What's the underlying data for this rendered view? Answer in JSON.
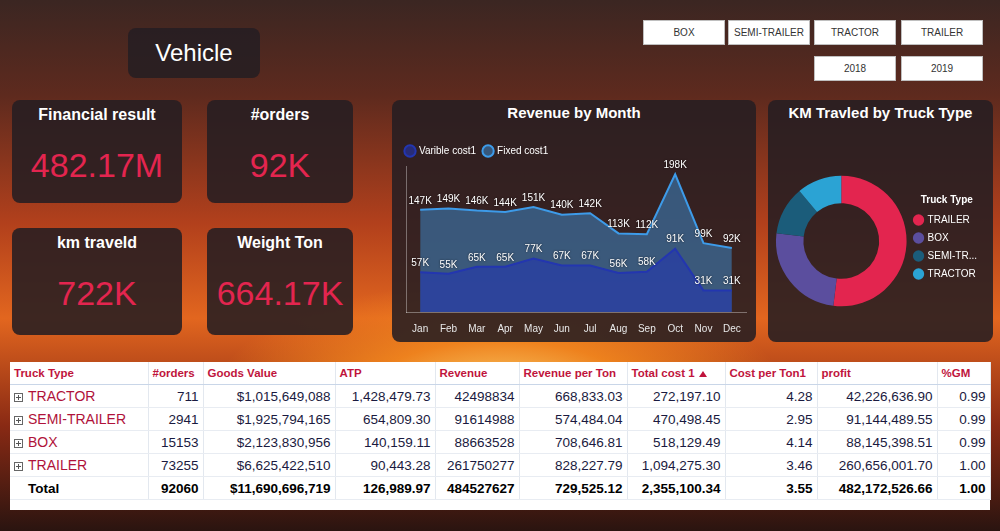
{
  "header": {
    "title": "Vehicle"
  },
  "slicers": {
    "truck_types": [
      "BOX",
      "SEMI-TRAILER",
      "TRACTOR",
      "TRAILER"
    ],
    "years": [
      "2018",
      "2019"
    ]
  },
  "cards": [
    {
      "title": "Financial result",
      "value": "482.17M"
    },
    {
      "title": "#orders",
      "value": "92K"
    },
    {
      "title": "km traveld",
      "value": "722K"
    },
    {
      "title": "Weight Ton",
      "value": "664.17K"
    }
  ],
  "chart_data": [
    {
      "type": "area",
      "title": "Revenue by Month",
      "categories": [
        "Jan",
        "Feb",
        "Mar",
        "Apr",
        "May",
        "Jun",
        "Jul",
        "Aug",
        "Sep",
        "Oct",
        "Nov",
        "Dec"
      ],
      "series": [
        {
          "name": "Fixed cost1",
          "color": "#3d9be9",
          "values": [
            147000,
            149000,
            146000,
            144000,
            151000,
            140000,
            142000,
            113000,
            112000,
            198000,
            99000,
            92000
          ],
          "value_labels": [
            "147K",
            "149K",
            "146K",
            "144K",
            "151K",
            "140K",
            "142K",
            "113K",
            "112K",
            "198K",
            "99K",
            "92K"
          ]
        },
        {
          "name": "Varible cost1",
          "color": "#2336b0",
          "values": [
            57000,
            55000,
            65000,
            65000,
            77000,
            67000,
            67000,
            56000,
            58000,
            91000,
            31000,
            31000
          ],
          "value_labels": [
            "57K",
            "55K",
            "65K",
            "65K",
            "77K",
            "67K",
            "67K",
            "56K",
            "58K",
            "91K",
            "31K",
            "31K"
          ]
        }
      ],
      "ylim": [
        0,
        210000
      ],
      "grid": false,
      "legend": "top-left",
      "data_labels": true,
      "tick_labels": "x"
    },
    {
      "type": "doughnut",
      "title": "KM Travled by Truck Type",
      "legend_title": "Truck Type",
      "categories": [
        "TRAILER",
        "BOX",
        "SEMI-TR...",
        "TRACTOR"
      ],
      "values": [
        375000,
        180000,
        87000,
        80000
      ],
      "colors": [
        "#e3254f",
        "#5b4e9e",
        "#1b5c7a",
        "#2ba3d4"
      ],
      "legend": "right"
    }
  ],
  "table": {
    "columns": [
      "Truck Type",
      "#orders",
      "Goods Value",
      "ATP",
      "Revenue",
      "Revenue per Ton",
      "Total cost 1",
      "Cost per Ton1",
      "profit",
      "%GM"
    ],
    "rows": [
      [
        "TRACTOR",
        "711",
        "$1,015,649,088",
        "1,428,479.73",
        "42498834",
        "668,833.03",
        "272,197.10",
        "4.28",
        "42,226,636.90",
        "0.99"
      ],
      [
        "SEMI-TRAILER",
        "2941",
        "$1,925,794,165",
        "654,809.30",
        "91614988",
        "574,484.04",
        "470,498.45",
        "2.95",
        "91,144,489.55",
        "0.99"
      ],
      [
        "BOX",
        "15153",
        "$2,123,830,956",
        "140,159.11",
        "88663528",
        "708,646.81",
        "518,129.49",
        "4.14",
        "88,145,398.51",
        "0.99"
      ],
      [
        "TRAILER",
        "73255",
        "$6,625,422,510",
        "90,443.28",
        "261750277",
        "828,227.79",
        "1,094,275.30",
        "3.46",
        "260,656,001.70",
        "1.00"
      ]
    ],
    "total": [
      "Total",
      "92060",
      "$11,690,696,719",
      "126,989.97",
      "484527627",
      "729,525.12",
      "2,355,100.34",
      "3.55",
      "482,172,526.66",
      "1.00"
    ]
  }
}
